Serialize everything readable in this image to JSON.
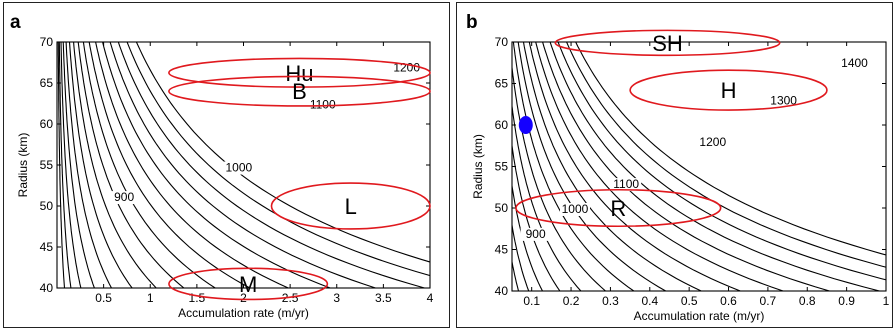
{
  "chart_data": [
    {
      "panel": "a",
      "type": "contour",
      "xlabel": "Accumulation rate (m/yr)",
      "ylabel": "Radius (km)",
      "xlim": [
        0,
        4
      ],
      "ylim": [
        40,
        70
      ],
      "xticks": [
        "0.5",
        "1",
        "1.5",
        "2",
        "2.5",
        "3",
        "3.5",
        "4"
      ],
      "yticks": [
        "40",
        "45",
        "50",
        "55",
        "60",
        "65",
        "70"
      ],
      "contour_labels": [
        {
          "text": "900",
          "x": 0.72,
          "y": 50.6
        },
        {
          "text": "1000",
          "x": 1.95,
          "y": 54.2
        },
        {
          "text": "1100",
          "x": 2.85,
          "y": 61.9
        },
        {
          "text": "1200",
          "x": 3.75,
          "y": 66.4
        }
      ],
      "regions": [
        {
          "label": "Hu",
          "x_range": [
            1.2,
            4.0
          ],
          "y_range": [
            64.5,
            68.0
          ]
        },
        {
          "label": "B",
          "x_range": [
            1.2,
            4.0
          ],
          "y_range": [
            62.2,
            65.8
          ]
        },
        {
          "label": "L",
          "x_range": [
            2.3,
            4.0
          ],
          "y_range": [
            47.2,
            52.8
          ]
        },
        {
          "label": "M",
          "x_range": [
            1.2,
            2.9
          ],
          "y_range": [
            38.6,
            42.4
          ]
        }
      ],
      "marker": null
    },
    {
      "panel": "b",
      "type": "contour",
      "xlabel": "Accumulation rate (m/yr)",
      "ylabel": "Radius (km)",
      "xlim": [
        0.05,
        1.0
      ],
      "ylim": [
        40,
        70
      ],
      "xticks": [
        "0.1",
        "0.2",
        "0.3",
        "0.4",
        "0.5",
        "0.6",
        "0.7",
        "0.8",
        "0.9",
        "1"
      ],
      "yticks": [
        "40",
        "45",
        "50",
        "55",
        "60",
        "65",
        "70"
      ],
      "contour_labels": [
        {
          "text": "900",
          "x": 0.11,
          "y": 46.4
        },
        {
          "text": "1000",
          "x": 0.21,
          "y": 49.4
        },
        {
          "text": "1100",
          "x": 0.34,
          "y": 52.4
        },
        {
          "text": "1200",
          "x": 0.56,
          "y": 57.5
        },
        {
          "text": "1300",
          "x": 0.74,
          "y": 62.5
        },
        {
          "text": "1400",
          "x": 0.92,
          "y": 67.0
        }
      ],
      "regions": [
        {
          "label": "SH",
          "x_range": [
            0.16,
            0.73
          ],
          "y_range": [
            68.4,
            71.4
          ]
        },
        {
          "label": "H",
          "x_range": [
            0.35,
            0.85
          ],
          "y_range": [
            61.8,
            66.6
          ]
        },
        {
          "label": "R",
          "x_range": [
            0.06,
            0.58
          ],
          "y_range": [
            47.8,
            52.2
          ]
        }
      ],
      "marker": {
        "x": 0.085,
        "y": 60.0,
        "color": "#1400ff"
      }
    }
  ],
  "panel_letters": {
    "a": "a",
    "b": "b"
  },
  "colors": {
    "contour": "#000000",
    "ellipse": "#e0191e",
    "marker": "#1400ff"
  }
}
